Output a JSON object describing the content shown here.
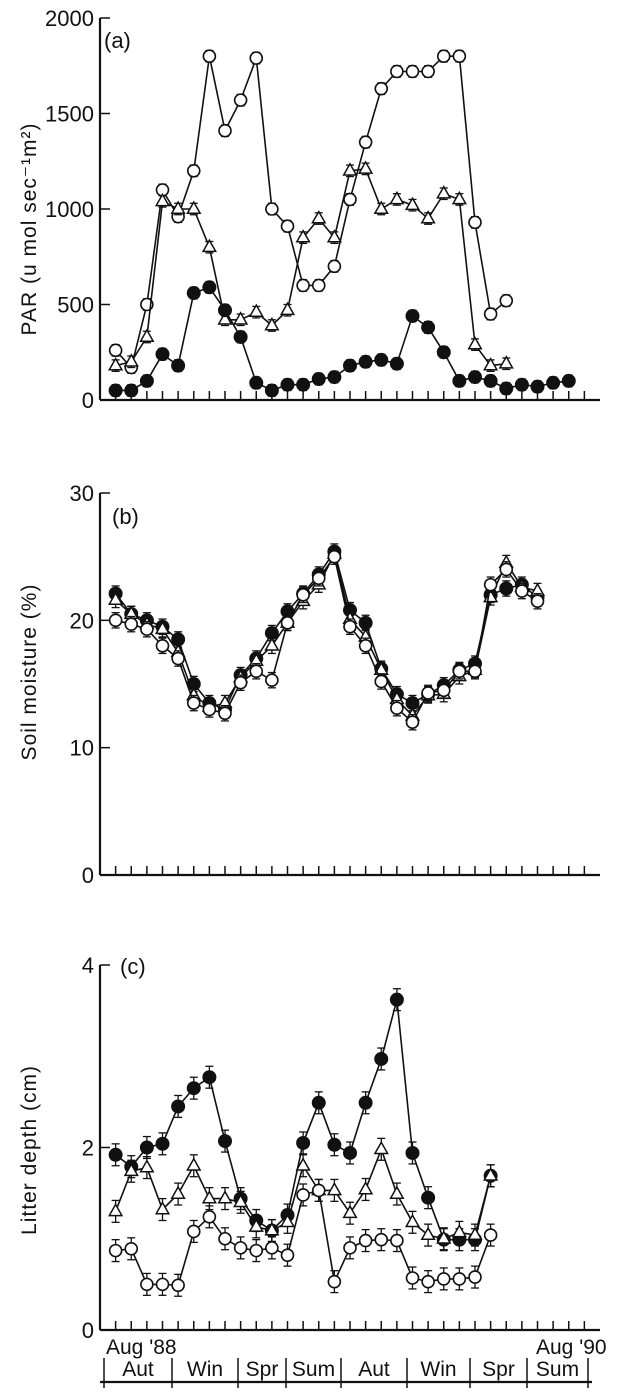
{
  "figure": {
    "date_start": "Aug '88",
    "date_end": "Aug '90",
    "seasons": [
      "Aut",
      "Win",
      "Spr",
      "Sum",
      "Aut",
      "Win",
      "Spr",
      "Sum"
    ]
  },
  "chart_data": [
    {
      "type": "line",
      "panel_label": "(a)",
      "ylabel": "PAR (u mol sec⁻¹m²)",
      "ylim": [
        0,
        2000
      ],
      "yticks": [
        0,
        500,
        1000,
        1500,
        2000
      ],
      "x": [
        1,
        2,
        3,
        4,
        5,
        6,
        7,
        8,
        9,
        10,
        11,
        12,
        13,
        14,
        15,
        16,
        17,
        18,
        19,
        20,
        21,
        22,
        23,
        24,
        25,
        26,
        27,
        28,
        29,
        30
      ],
      "xlim": [
        0,
        32
      ],
      "series": [
        {
          "marker": "open-circle",
          "values": [
            260,
            170,
            500,
            1100,
            960,
            1200,
            1800,
            1410,
            1570,
            1790,
            1000,
            910,
            600,
            600,
            700,
            1050,
            1350,
            1630,
            1720,
            1720,
            1720,
            1800,
            1800,
            930,
            450,
            520,
            null,
            null,
            null,
            null
          ]
        },
        {
          "marker": "open-triangle",
          "values": [
            180,
            200,
            330,
            1040,
            1000,
            1000,
            800,
            420,
            420,
            460,
            390,
            470,
            850,
            950,
            850,
            1200,
            1210,
            1000,
            1050,
            1020,
            950,
            1080,
            1050,
            290,
            180,
            190,
            null,
            null,
            null,
            null
          ]
        },
        {
          "marker": "filled-circle",
          "values": [
            50,
            50,
            100,
            240,
            180,
            560,
            590,
            470,
            330,
            90,
            50,
            80,
            80,
            110,
            120,
            180,
            200,
            210,
            190,
            440,
            380,
            250,
            100,
            120,
            100,
            60,
            80,
            70,
            90,
            100
          ]
        }
      ]
    },
    {
      "type": "line",
      "panel_label": "(b)",
      "ylabel": "Soil moisture (%)",
      "ylim": [
        0,
        30
      ],
      "yticks": [
        0,
        10,
        20,
        30
      ],
      "x": [
        1,
        2,
        3,
        4,
        5,
        6,
        7,
        8,
        9,
        10,
        11,
        12,
        13,
        14,
        15,
        16,
        17,
        18,
        19,
        20,
        21,
        22,
        23,
        24,
        25,
        26,
        27,
        28,
        29,
        30
      ],
      "xlim": [
        0,
        32
      ],
      "series": [
        {
          "marker": "filled-circle",
          "values": [
            22.1,
            20.5,
            20.0,
            19.5,
            18.5,
            15.0,
            13.5,
            13.0,
            15.7,
            17.0,
            19.0,
            20.7,
            22.1,
            23.6,
            25.4,
            20.8,
            19.8,
            16.2,
            14.2,
            13.5,
            14.2,
            14.9,
            16.1,
            16.6,
            22.0,
            22.5,
            22.8,
            21.8,
            null,
            null
          ]
        },
        {
          "marker": "open-triangle",
          "values": [
            21.6,
            20.5,
            19.7,
            19.3,
            17.5,
            14.1,
            13.2,
            13.5,
            15.5,
            16.8,
            18.0,
            19.8,
            21.5,
            22.8,
            25.2,
            20.1,
            18.7,
            16.1,
            13.8,
            12.5,
            14.1,
            14.2,
            15.6,
            16.1,
            21.8,
            24.5,
            22.6,
            22.3,
            null,
            null
          ]
        },
        {
          "marker": "open-circle",
          "values": [
            20.0,
            19.7,
            19.3,
            18.0,
            17.0,
            13.5,
            13.0,
            12.7,
            15.1,
            16.0,
            15.3,
            19.8,
            22.0,
            23.3,
            25.0,
            19.5,
            18.0,
            15.2,
            13.1,
            12.0,
            14.3,
            14.5,
            16.0,
            16.0,
            22.8,
            24.0,
            22.3,
            21.5,
            null,
            null
          ]
        }
      ]
    },
    {
      "type": "line",
      "panel_label": "(c)",
      "ylabel": "Litter depth (cm)",
      "ylim": [
        0,
        4
      ],
      "yticks": [
        0,
        2,
        4
      ],
      "x": [
        1,
        2,
        3,
        4,
        5,
        6,
        7,
        8,
        9,
        10,
        11,
        12,
        13,
        14,
        15,
        16,
        17,
        18,
        19,
        20,
        21,
        22,
        23,
        24,
        25,
        26,
        27,
        28,
        29,
        30
      ],
      "xlim": [
        0,
        32
      ],
      "series": [
        {
          "marker": "filled-circle",
          "values": [
            1.92,
            1.79,
            2.0,
            2.04,
            2.45,
            2.65,
            2.77,
            2.07,
            1.44,
            1.2,
            1.09,
            1.26,
            2.05,
            2.49,
            2.03,
            1.94,
            2.49,
            2.97,
            3.62,
            1.94,
            1.45,
            0.99,
            0.99,
            0.99,
            1.69,
            null,
            null,
            null,
            null,
            null
          ]
        },
        {
          "marker": "open-triangle",
          "values": [
            1.3,
            1.74,
            1.78,
            1.32,
            1.49,
            1.8,
            1.44,
            1.44,
            1.4,
            1.13,
            1.09,
            1.18,
            1.8,
            1.53,
            1.53,
            1.28,
            1.54,
            1.98,
            1.49,
            1.18,
            1.04,
            1.0,
            1.07,
            1.04,
            1.69,
            null,
            null,
            null,
            null,
            null
          ]
        },
        {
          "marker": "open-circle",
          "values": [
            0.87,
            0.89,
            0.5,
            0.5,
            0.49,
            1.08,
            1.24,
            1.0,
            0.9,
            0.87,
            0.9,
            0.82,
            1.48,
            1.53,
            0.53,
            0.9,
            0.98,
            0.99,
            0.98,
            0.57,
            0.53,
            0.56,
            0.56,
            0.58,
            1.04,
            null,
            null,
            null,
            null,
            null
          ]
        }
      ]
    }
  ]
}
